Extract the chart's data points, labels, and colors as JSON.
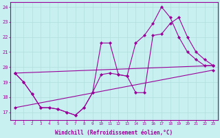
{
  "xlabel": "Windchill (Refroidissement éolien,°C)",
  "background_color": "#c8f0f0",
  "line_color": "#990099",
  "grid_color": "#b0dede",
  "xlim_min": -0.5,
  "xlim_max": 23.5,
  "ylim_min": 16.5,
  "ylim_max": 24.3,
  "xtick_labels": [
    "0",
    "1",
    "2",
    "3",
    "4",
    "5",
    "6",
    "7",
    "8",
    "9",
    "10",
    "11",
    "12",
    "13",
    "14",
    "15",
    "16",
    "17",
    "18",
    "19",
    "20",
    "21",
    "22",
    "23"
  ],
  "ytick_values": [
    17,
    18,
    19,
    20,
    21,
    22,
    23,
    24
  ],
  "series": [
    {
      "x": [
        0,
        1,
        2,
        3,
        4,
        5,
        6,
        7,
        8,
        9,
        10,
        11,
        12,
        13,
        14,
        15,
        16,
        17,
        18,
        19,
        20,
        21,
        22,
        23
      ],
      "y": [
        19.6,
        19.0,
        18.2,
        17.3,
        17.3,
        17.2,
        17.0,
        16.8,
        17.3,
        18.3,
        21.6,
        21.6,
        19.5,
        19.4,
        21.6,
        22.1,
        22.9,
        24.0,
        23.3,
        22.0,
        21.0,
        20.5,
        20.1,
        20.1
      ]
    },
    {
      "x": [
        0,
        1,
        2,
        3,
        4,
        5,
        6,
        7,
        8,
        9,
        10,
        11,
        12,
        13,
        14,
        15,
        16,
        17,
        18,
        19,
        20,
        21,
        22,
        23
      ],
      "y": [
        19.6,
        19.0,
        18.2,
        17.3,
        17.3,
        17.2,
        17.0,
        16.8,
        17.3,
        18.3,
        19.5,
        19.6,
        19.5,
        19.4,
        18.3,
        18.3,
        22.1,
        22.2,
        22.9,
        23.3,
        22.0,
        21.0,
        20.5,
        20.1
      ]
    },
    {
      "x": [
        0,
        23
      ],
      "y": [
        19.6,
        20.1
      ]
    },
    {
      "x": [
        0,
        23
      ],
      "y": [
        17.3,
        19.8
      ]
    }
  ]
}
